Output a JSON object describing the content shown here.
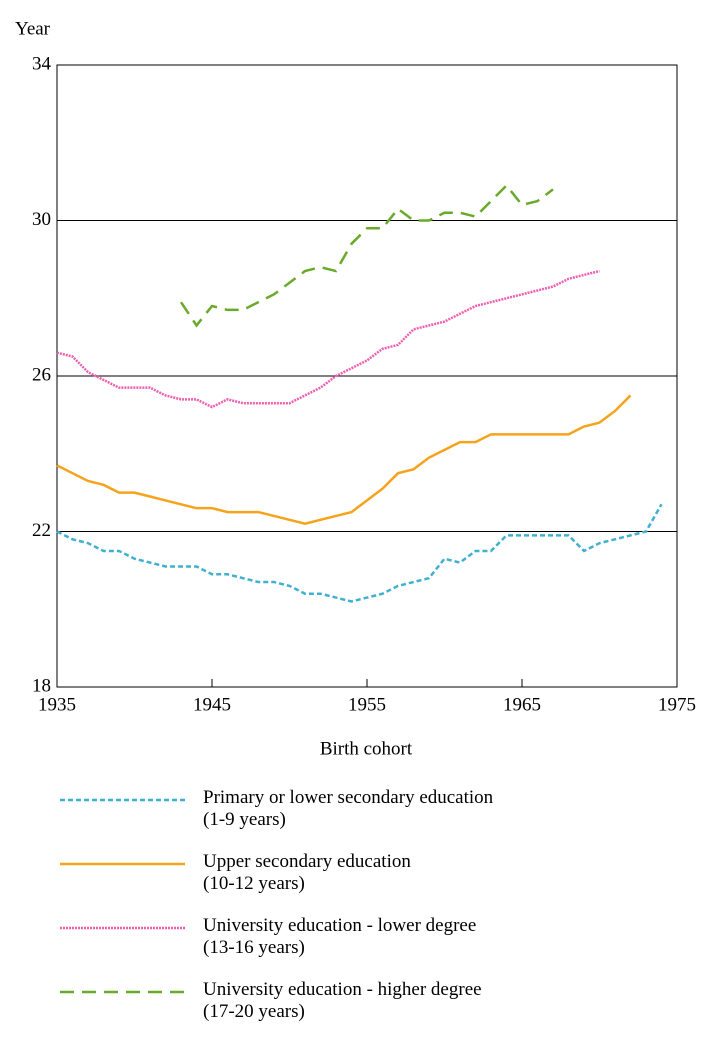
{
  "chart_data": {
    "type": "line",
    "ylabel": "Year",
    "xlabel": "Birth cohort",
    "x": [
      1935,
      1936,
      1937,
      1938,
      1939,
      1940,
      1941,
      1942,
      1943,
      1944,
      1945,
      1946,
      1947,
      1948,
      1949,
      1950,
      1951,
      1952,
      1953,
      1954,
      1955,
      1956,
      1957,
      1958,
      1959,
      1960,
      1961,
      1962,
      1963,
      1964,
      1965,
      1966,
      1967,
      1968,
      1969,
      1970,
      1971,
      1972,
      1973,
      1974
    ],
    "xlim": [
      1935,
      1975
    ],
    "xticks": [
      1935,
      1945,
      1955,
      1965,
      1975
    ],
    "ylim": [
      18,
      34
    ],
    "yticks": [
      18,
      22,
      26,
      30,
      34
    ],
    "grid": true,
    "series": [
      {
        "name": "Primary or lower secondary education\n(1-9 years)",
        "color": "#3fb0d0",
        "dash": "5,3",
        "values": [
          22.0,
          21.8,
          21.7,
          21.5,
          21.5,
          21.3,
          21.2,
          21.1,
          21.1,
          21.1,
          20.9,
          20.9,
          20.8,
          20.7,
          20.7,
          20.6,
          20.4,
          20.4,
          20.3,
          20.2,
          20.3,
          20.4,
          20.6,
          20.7,
          20.8,
          21.3,
          21.2,
          21.5,
          21.5,
          21.9,
          21.9,
          21.9,
          21.9,
          21.9,
          21.5,
          21.7,
          21.8,
          21.9,
          22.0,
          22.7
        ]
      },
      {
        "name": "Upper secondary education\n(10-12 years)",
        "color": "#f5a31a",
        "dash": "none",
        "values": [
          23.7,
          23.5,
          23.3,
          23.2,
          23.0,
          23.0,
          22.9,
          22.8,
          22.7,
          22.6,
          22.6,
          22.5,
          22.5,
          22.5,
          22.4,
          22.3,
          22.2,
          22.3,
          22.4,
          22.5,
          22.8,
          23.1,
          23.5,
          23.6,
          23.9,
          24.1,
          24.3,
          24.3,
          24.5,
          24.5,
          24.5,
          24.5,
          24.5,
          24.5,
          24.7,
          24.8,
          25.1,
          25.5,
          null,
          null
        ]
      },
      {
        "name": "University education - lower degree\n(13-16 years)",
        "color": "#ef5fb0",
        "dash": "2,1",
        "values": [
          26.6,
          26.5,
          26.1,
          25.9,
          25.7,
          25.7,
          25.7,
          25.5,
          25.4,
          25.4,
          25.2,
          25.4,
          25.3,
          25.3,
          25.3,
          25.3,
          25.5,
          25.7,
          26.0,
          26.2,
          26.4,
          26.7,
          26.8,
          27.2,
          27.3,
          27.4,
          27.6,
          27.8,
          27.9,
          28.0,
          28.1,
          28.2,
          28.3,
          28.5,
          28.6,
          28.7,
          null,
          null,
          null,
          null
        ]
      },
      {
        "name": "University education - higher degree\n(17-20 years)",
        "color": "#6aaa2a",
        "dash": "14,8",
        "values": [
          null,
          null,
          null,
          null,
          null,
          null,
          null,
          null,
          27.9,
          27.3,
          27.8,
          27.7,
          27.7,
          27.9,
          28.1,
          28.4,
          28.7,
          28.8,
          28.7,
          29.4,
          29.8,
          29.8,
          30.3,
          30.0,
          30.0,
          30.2,
          30.2,
          30.1,
          30.5,
          30.9,
          30.4,
          30.5,
          30.8,
          null,
          null,
          null,
          null,
          null,
          null,
          null
        ]
      }
    ]
  }
}
